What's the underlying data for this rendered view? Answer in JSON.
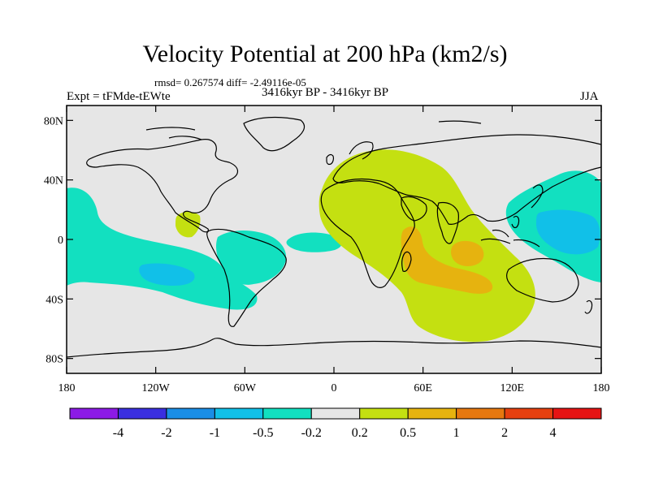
{
  "title": "Velocity Potential at 200 hPa (km2/s)",
  "stats": "rmsd= 0.267574 diff= -2.49116e-05",
  "left_label": "Expt = tFMde-tEWte",
  "center_label": "3416kyr BP - 3416kyr BP",
  "right_label": "JJA",
  "lat_ticks": [
    "80N",
    "40N",
    "0",
    "40S",
    "80S"
  ],
  "lon_ticks": [
    "180",
    "120W",
    "60W",
    "0",
    "60E",
    "120E",
    "180"
  ],
  "colorbar": {
    "colors": [
      "#8c1ae6",
      "#3a2fe0",
      "#1a8ee6",
      "#11c0e8",
      "#12e0c0",
      "#e6e6e6",
      "#c4e011",
      "#e6b30f",
      "#e6780f",
      "#e6400f",
      "#e61414"
    ],
    "labels": [
      "-4",
      "-2",
      "-1",
      "-0.5",
      "-0.2",
      "0.2",
      "0.5",
      "1",
      "2",
      "4"
    ]
  },
  "colors": {
    "ocean_background": "#e6e6e6",
    "negative_weak": "#12e0c0",
    "negative_mid": "#11c0e8",
    "positive_weak": "#c4e011",
    "positive_mid": "#e6b30f"
  }
}
